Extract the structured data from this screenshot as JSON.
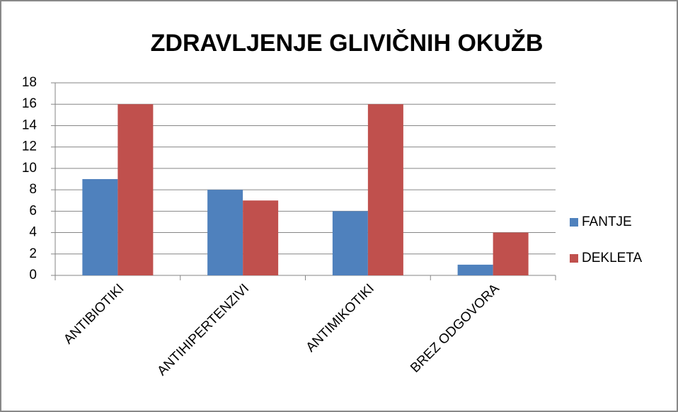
{
  "chart_data": {
    "type": "bar",
    "title": "ZDRAVLJENJE GLIVIČNIH OKUŽB",
    "categories": [
      "ANTIBIOTIKI",
      "ANTIHIPERTENZIVI",
      "ANTIMIKOTIKI",
      "BREZ ODGOVORA"
    ],
    "series": [
      {
        "name": "FANTJE",
        "color": "#4f81bd",
        "values": [
          9,
          8,
          6,
          1
        ]
      },
      {
        "name": "DEKLETA",
        "color": "#c0504d",
        "values": [
          16,
          7,
          16,
          4
        ]
      }
    ],
    "ylim": [
      0,
      18
    ],
    "yticks": [
      0,
      2,
      4,
      6,
      8,
      10,
      12,
      14,
      16,
      18
    ],
    "grid": true,
    "legend": "right"
  }
}
